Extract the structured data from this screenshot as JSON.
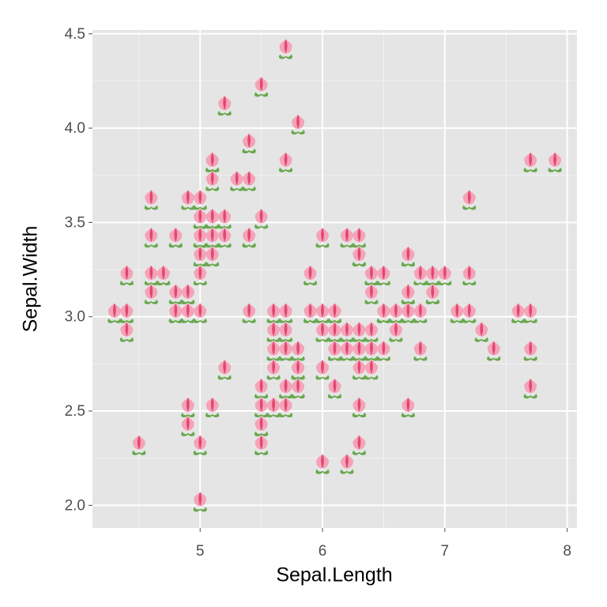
{
  "chart_data": {
    "type": "scatter",
    "x_label": "Sepal.Length",
    "y_label": "Sepal.Width",
    "xlim": [
      4.12,
      8.08
    ],
    "ylim": [
      1.88,
      4.52
    ],
    "xticks": [
      5,
      6,
      7,
      8
    ],
    "yticks": [
      {
        "value": 2.0,
        "label": "2.0"
      },
      {
        "value": 2.5,
        "label": "2.5"
      },
      {
        "value": 3.0,
        "label": "3.0"
      },
      {
        "value": 3.5,
        "label": "3.5"
      },
      {
        "value": 4.0,
        "label": "4.0"
      },
      {
        "value": 4.5,
        "label": "4.5"
      }
    ],
    "grid": true,
    "x": [
      5.1,
      4.9,
      4.7,
      4.6,
      5.0,
      5.4,
      4.6,
      5.0,
      4.4,
      4.9,
      5.4,
      4.8,
      4.8,
      4.3,
      5.8,
      5.7,
      5.4,
      5.1,
      5.7,
      5.1,
      5.4,
      5.1,
      4.6,
      5.1,
      4.8,
      5.0,
      5.0,
      5.2,
      5.2,
      4.7,
      4.8,
      5.4,
      5.2,
      5.5,
      4.9,
      5.0,
      5.5,
      4.9,
      4.4,
      5.1,
      5.0,
      4.5,
      4.4,
      5.0,
      5.1,
      4.8,
      5.1,
      4.6,
      5.3,
      5.0,
      7.0,
      6.4,
      6.9,
      5.5,
      6.5,
      5.7,
      6.3,
      4.9,
      6.6,
      5.2,
      5.0,
      5.9,
      6.0,
      6.1,
      5.6,
      6.7,
      5.6,
      5.8,
      6.2,
      5.6,
      5.9,
      6.1,
      6.3,
      6.1,
      6.4,
      6.6,
      6.8,
      6.7,
      6.0,
      5.7,
      5.5,
      5.5,
      5.8,
      6.0,
      5.4,
      6.0,
      6.7,
      6.3,
      5.6,
      5.5,
      5.5,
      6.1,
      5.8,
      5.0,
      5.6,
      5.7,
      5.7,
      6.2,
      5.1,
      5.7,
      6.3,
      5.8,
      7.1,
      6.3,
      6.5,
      7.6,
      4.9,
      7.3,
      6.7,
      7.2,
      6.5,
      6.4,
      6.8,
      5.7,
      5.8,
      6.4,
      6.5,
      7.7,
      7.7,
      6.0,
      6.9,
      5.6,
      7.7,
      6.3,
      6.7,
      7.2,
      6.2,
      6.1,
      6.4,
      7.2,
      7.4,
      7.9,
      6.4,
      6.3,
      6.1,
      7.7,
      6.3,
      6.4,
      6.0,
      6.9,
      6.7,
      6.9,
      5.8,
      6.8,
      6.7,
      6.7,
      6.3,
      6.5,
      6.2,
      5.9
    ],
    "values": [
      3.5,
      3.0,
      3.2,
      3.1,
      3.6,
      3.9,
      3.4,
      3.4,
      2.9,
      3.1,
      3.7,
      3.4,
      3.0,
      3.0,
      4.0,
      4.4,
      3.9,
      3.5,
      3.8,
      3.8,
      3.4,
      3.7,
      3.6,
      3.3,
      3.4,
      3.0,
      3.4,
      3.5,
      3.4,
      3.2,
      3.1,
      3.4,
      4.1,
      4.2,
      3.1,
      3.2,
      3.5,
      3.6,
      3.0,
      3.4,
      3.5,
      2.3,
      3.2,
      3.5,
      3.8,
      3.0,
      3.8,
      3.2,
      3.7,
      3.3,
      3.2,
      3.2,
      3.1,
      2.3,
      2.8,
      2.8,
      3.3,
      2.4,
      2.9,
      2.7,
      2.0,
      3.0,
      2.2,
      2.9,
      2.9,
      3.1,
      3.0,
      2.7,
      2.2,
      2.5,
      3.2,
      2.8,
      2.5,
      2.8,
      2.9,
      3.0,
      2.8,
      3.0,
      2.9,
      2.6,
      2.4,
      2.4,
      2.7,
      2.7,
      3.0,
      3.4,
      3.1,
      2.3,
      3.0,
      2.5,
      2.6,
      3.0,
      2.6,
      2.3,
      2.7,
      3.0,
      2.9,
      2.9,
      2.5,
      2.8,
      3.3,
      2.7,
      3.0,
      2.9,
      3.0,
      3.0,
      2.5,
      2.9,
      2.5,
      3.6,
      3.2,
      2.7,
      3.0,
      2.5,
      2.8,
      3.2,
      3.0,
      3.8,
      2.6,
      2.2,
      3.2,
      2.8,
      2.8,
      2.7,
      3.3,
      3.2,
      2.8,
      3.0,
      2.8,
      3.0,
      2.8,
      3.8,
      2.8,
      2.8,
      2.6,
      3.0,
      3.4,
      3.1,
      3.0,
      3.1,
      3.1,
      3.1,
      2.7,
      3.2,
      3.3,
      3.0,
      2.5,
      3.0,
      3.4,
      3.0
    ]
  }
}
